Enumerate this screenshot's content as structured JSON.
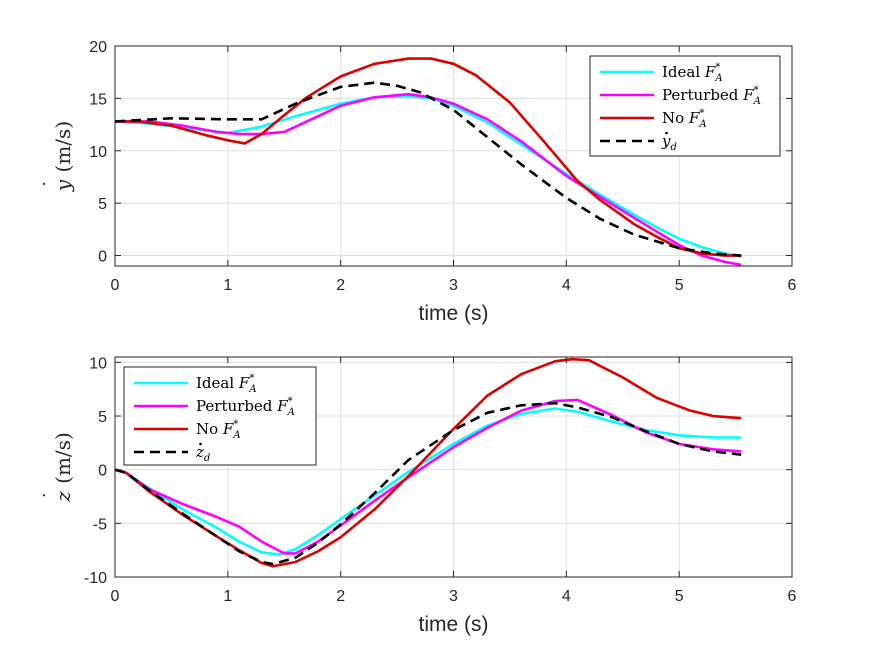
{
  "colors": {
    "background": "#ffffff",
    "axes_edge": "#262626",
    "grid": "#dfdfdf",
    "tick_text": "#262626"
  },
  "chart_data": [
    {
      "type": "line",
      "xlabel": "time (s)",
      "ylabel": {
        "symbol": "y",
        "dot": "˙",
        "units": " (m/s)"
      },
      "xlim": [
        0,
        6
      ],
      "ylim": [
        -1,
        20
      ],
      "xticks": [
        0,
        1,
        2,
        3,
        4,
        5,
        6
      ],
      "yticks": [
        0,
        5,
        10,
        15,
        20
      ],
      "grid": true,
      "legend_position": "top-right",
      "series": [
        {
          "name": "Ideal F_A^*",
          "label_prefix": "Ideal ",
          "label_symbol": "F",
          "label_sup": "*",
          "label_sub": "A",
          "color": "#00ffff",
          "dash": "solid",
          "x": [
            0,
            0.3,
            0.6,
            1.0,
            1.3,
            1.6,
            2.0,
            2.3,
            2.6,
            2.8,
            3.0,
            3.3,
            3.6,
            4.0,
            4.3,
            4.6,
            4.8,
            5.0,
            5.2,
            5.4,
            5.55
          ],
          "y": [
            12.8,
            12.6,
            12.2,
            11.7,
            12.3,
            13.3,
            14.5,
            15.1,
            15.2,
            15.0,
            14.3,
            12.7,
            10.6,
            7.8,
            5.8,
            3.9,
            2.7,
            1.6,
            0.8,
            0.2,
            -0.1
          ]
        },
        {
          "name": "Perturbed F_A^*",
          "label_prefix": "Perturbed ",
          "label_symbol": "F",
          "label_sup": "*",
          "label_sub": "A",
          "color": "#ff00ff",
          "dash": "solid",
          "x": [
            0,
            0.3,
            0.6,
            0.9,
            1.1,
            1.3,
            1.5,
            1.7,
            2.0,
            2.3,
            2.6,
            2.8,
            3.0,
            3.3,
            3.6,
            4.0,
            4.3,
            4.6,
            4.8,
            5.0,
            5.2,
            5.4,
            5.55
          ],
          "y": [
            12.8,
            12.8,
            12.4,
            11.8,
            11.6,
            11.6,
            11.8,
            12.8,
            14.3,
            15.1,
            15.4,
            15.1,
            14.5,
            13.0,
            10.9,
            7.6,
            5.6,
            3.6,
            2.3,
            1.0,
            0.0,
            -0.6,
            -0.9
          ]
        },
        {
          "name": "No F_A^*",
          "label_prefix": "No ",
          "label_symbol": "F",
          "label_sup": "*",
          "label_sub": "A",
          "color": "#dd0000",
          "dash": "solid",
          "x": [
            0,
            0.2,
            0.5,
            0.8,
            1.0,
            1.15,
            1.3,
            1.5,
            1.7,
            2.0,
            2.3,
            2.6,
            2.8,
            3.0,
            3.2,
            3.5,
            3.8,
            4.1,
            4.3,
            4.6,
            4.8,
            5.0,
            5.2,
            5.4,
            5.55
          ],
          "y": [
            12.8,
            12.8,
            12.4,
            11.5,
            11.0,
            10.7,
            11.6,
            13.4,
            15.1,
            17.1,
            18.3,
            18.8,
            18.8,
            18.3,
            17.2,
            14.6,
            10.9,
            7.1,
            5.3,
            3.0,
            1.8,
            0.7,
            0.2,
            0.0,
            0.0
          ]
        },
        {
          "name": "y_d dot",
          "label_prefix": "",
          "label_symbol": "y",
          "label_dot": true,
          "label_sup": "",
          "label_sub": "d",
          "color": "#000000",
          "dash": "dashed",
          "x": [
            0,
            0.5,
            1.0,
            1.3,
            1.6,
            2.0,
            2.3,
            2.5,
            2.7,
            3.0,
            3.3,
            3.6,
            4.0,
            4.3,
            4.6,
            5.0,
            5.3,
            5.55
          ],
          "y": [
            12.8,
            13.1,
            13.0,
            13.0,
            14.5,
            16.1,
            16.5,
            16.2,
            15.6,
            13.9,
            11.3,
            8.7,
            5.5,
            3.5,
            2.0,
            0.7,
            0.2,
            0.0
          ]
        }
      ]
    },
    {
      "type": "line",
      "xlabel": "time (s)",
      "ylabel": {
        "symbol": "z",
        "dot": "˙",
        "units": " (m/s)"
      },
      "xlim": [
        0,
        6
      ],
      "ylim": [
        -10,
        10.5
      ],
      "xticks": [
        0,
        1,
        2,
        3,
        4,
        5,
        6
      ],
      "yticks": [
        -10,
        -5,
        0,
        5,
        10
      ],
      "grid": true,
      "legend_position": "top-left",
      "series": [
        {
          "name": "Ideal F_A^*",
          "label_prefix": "Ideal ",
          "label_symbol": "F",
          "label_sup": "*",
          "label_sub": "A",
          "color": "#00ffff",
          "dash": "solid",
          "x": [
            0,
            0.1,
            0.3,
            0.6,
            0.9,
            1.1,
            1.3,
            1.45,
            1.6,
            1.8,
            2.0,
            2.3,
            2.6,
            3.0,
            3.3,
            3.6,
            3.9,
            4.1,
            4.4,
            4.7,
            5.0,
            5.3,
            5.55
          ],
          "y": [
            0,
            -0.3,
            -1.7,
            -3.7,
            -5.4,
            -6.7,
            -7.7,
            -7.9,
            -7.4,
            -6.1,
            -4.6,
            -2.4,
            -0.2,
            2.4,
            4.1,
            5.2,
            5.7,
            5.4,
            4.5,
            3.7,
            3.2,
            3.0,
            3.0
          ]
        },
        {
          "name": "Perturbed F_A^*",
          "label_prefix": "Perturbed ",
          "label_symbol": "F",
          "label_sup": "*",
          "label_sub": "A",
          "color": "#ff00ff",
          "dash": "solid",
          "x": [
            0,
            0.1,
            0.3,
            0.6,
            0.9,
            1.1,
            1.3,
            1.5,
            1.6,
            1.8,
            2.0,
            2.3,
            2.6,
            3.0,
            3.3,
            3.6,
            3.9,
            4.1,
            4.4,
            4.7,
            5.0,
            5.3,
            5.55
          ],
          "y": [
            0,
            -0.3,
            -1.8,
            -3.2,
            -4.4,
            -5.3,
            -6.7,
            -7.8,
            -7.8,
            -6.7,
            -5.2,
            -2.9,
            -0.7,
            2.1,
            3.9,
            5.5,
            6.4,
            6.5,
            5.1,
            3.5,
            2.4,
            1.9,
            1.7
          ]
        },
        {
          "name": "No F_A^*",
          "label_prefix": "No ",
          "label_symbol": "F",
          "label_sup": "*",
          "label_sub": "A",
          "color": "#dd0000",
          "dash": "solid",
          "x": [
            0,
            0.1,
            0.3,
            0.6,
            0.9,
            1.1,
            1.3,
            1.4,
            1.6,
            1.8,
            2.0,
            2.3,
            2.6,
            3.0,
            3.3,
            3.6,
            3.9,
            4.05,
            4.2,
            4.5,
            4.8,
            5.1,
            5.3,
            5.55
          ],
          "y": [
            0,
            -0.3,
            -2.0,
            -4.2,
            -6.2,
            -7.5,
            -8.7,
            -9.0,
            -8.6,
            -7.6,
            -6.3,
            -3.7,
            -0.6,
            3.8,
            6.9,
            8.9,
            10.1,
            10.3,
            10.2,
            8.6,
            6.7,
            5.5,
            5.0,
            4.8
          ]
        },
        {
          "name": "z_d dot",
          "label_prefix": "",
          "label_symbol": "z",
          "label_dot": true,
          "label_sup": "",
          "label_sub": "d",
          "color": "#000000",
          "dash": "dashed",
          "x": [
            0,
            0.1,
            0.3,
            0.6,
            0.9,
            1.1,
            1.3,
            1.4,
            1.6,
            1.8,
            2.0,
            2.3,
            2.6,
            3.0,
            3.3,
            3.6,
            3.9,
            4.1,
            4.4,
            4.7,
            5.0,
            5.3,
            5.55
          ],
          "y": [
            0,
            -0.3,
            -1.9,
            -4.1,
            -6.2,
            -7.6,
            -8.6,
            -8.8,
            -8.2,
            -6.8,
            -5.1,
            -2.2,
            0.9,
            3.7,
            5.3,
            6.0,
            6.2,
            5.8,
            4.9,
            3.6,
            2.4,
            1.7,
            1.4
          ]
        }
      ]
    }
  ]
}
